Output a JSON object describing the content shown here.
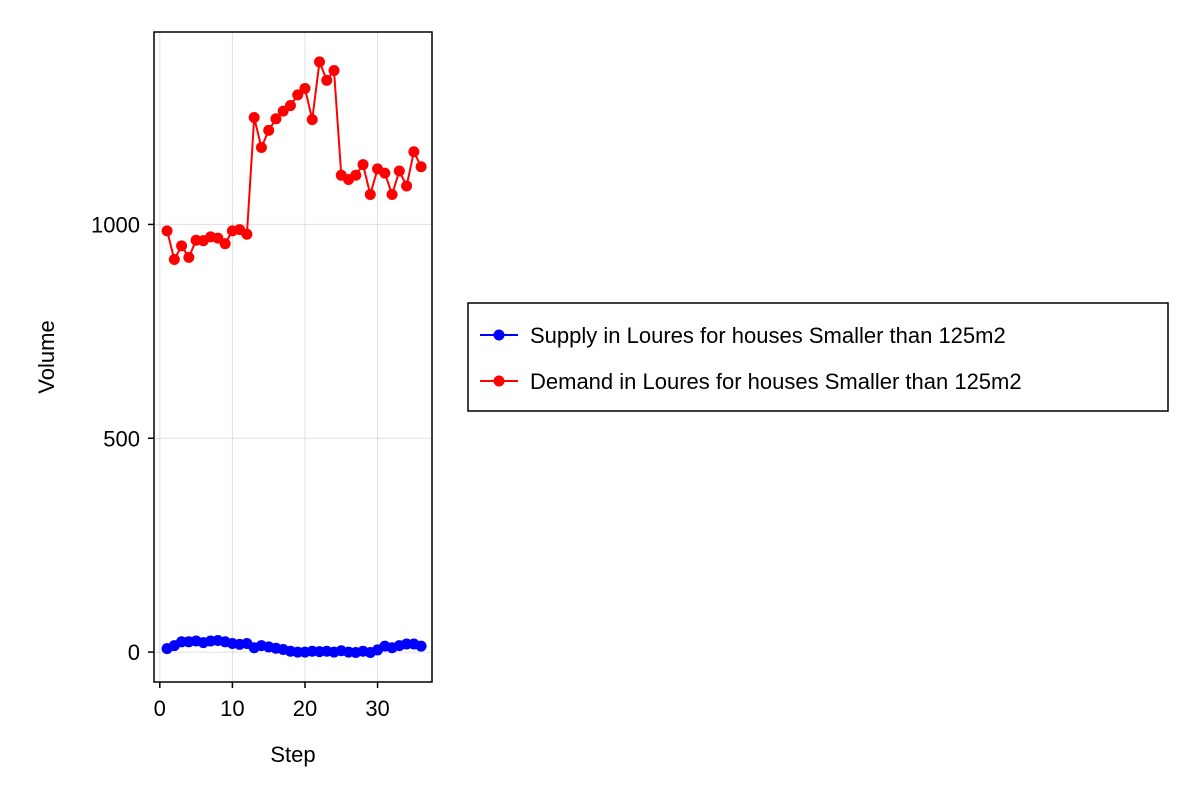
{
  "chart_data": {
    "type": "line",
    "title": "",
    "xlabel": "Step",
    "ylabel": "Volume",
    "xlim": [
      -0.8,
      37.5
    ],
    "ylim": [
      -70,
      1450
    ],
    "xticks": [
      0,
      10,
      20,
      30
    ],
    "yticks": [
      0,
      500,
      1000
    ],
    "grid": true,
    "legend_position": "right",
    "x": [
      1,
      2,
      3,
      4,
      5,
      6,
      7,
      8,
      9,
      10,
      11,
      12,
      13,
      14,
      15,
      16,
      17,
      18,
      19,
      20,
      21,
      22,
      23,
      24,
      25,
      26,
      27,
      28,
      29,
      30,
      31,
      32,
      33,
      34,
      35,
      36
    ],
    "series": [
      {
        "name": "Supply in Loures for houses Smaller than 125m2",
        "color": "#0000ff",
        "values": [
          8,
          15,
          24,
          24,
          26,
          22,
          26,
          27,
          24,
          20,
          18,
          20,
          10,
          15,
          12,
          9,
          6,
          2,
          0,
          0,
          2,
          1,
          2,
          0,
          3,
          0,
          -1,
          2,
          -1,
          5,
          14,
          10,
          15,
          19,
          19,
          14
        ]
      },
      {
        "name": "Demand in Loures for houses Smaller than 125m2",
        "color": "#ff0000",
        "values": [
          985,
          918,
          950,
          923,
          963,
          962,
          971,
          968,
          955,
          985,
          988,
          977,
          1250,
          1180,
          1220,
          1247,
          1265,
          1278,
          1303,
          1318,
          1245,
          1380,
          1337,
          1360,
          1115,
          1105,
          1115,
          1140,
          1070,
          1130,
          1120,
          1070,
          1125,
          1090,
          1170,
          1135
        ]
      }
    ]
  }
}
